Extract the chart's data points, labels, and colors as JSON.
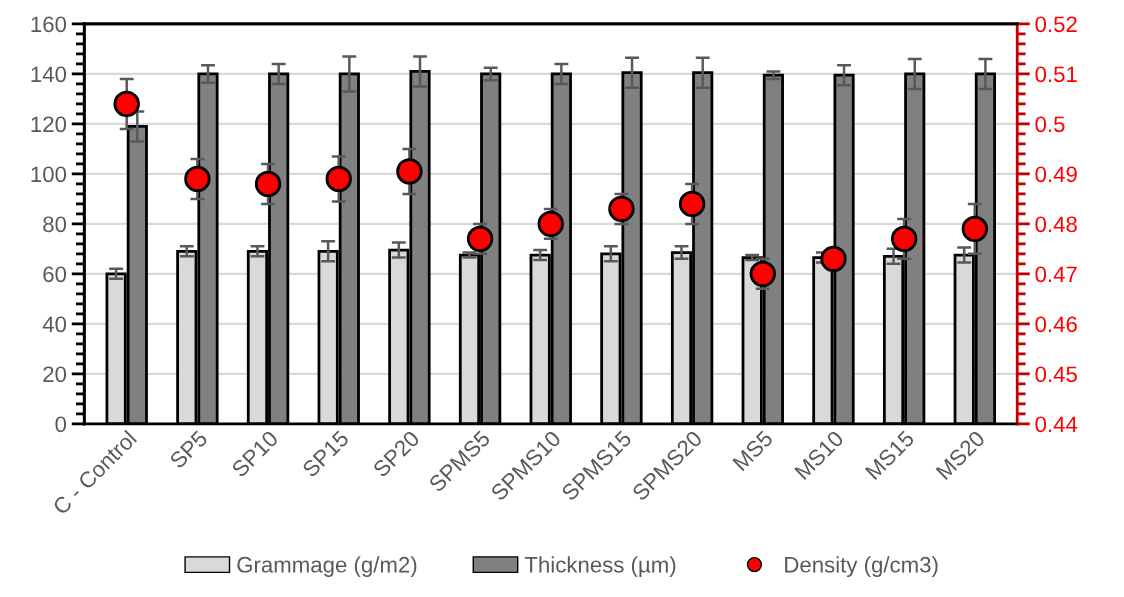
{
  "chart_data": {
    "type": "bar",
    "categories": [
      "C - Control",
      "SP5",
      "SP10",
      "SP15",
      "SP20",
      "SPMS5",
      "SPMS10",
      "SPMS15",
      "SPMS20",
      "MS5",
      "MS10",
      "MS15",
      "MS20"
    ],
    "series": [
      {
        "name": "Grammage (g/m2)",
        "color": "#d9d9d9",
        "values": [
          60,
          69,
          69,
          69,
          69.5,
          67.5,
          67.5,
          68,
          68.5,
          66.5,
          66.5,
          67,
          67.5
        ],
        "errors": [
          2,
          2,
          2,
          4,
          3,
          1,
          2,
          3,
          2.5,
          1,
          2,
          3,
          3
        ]
      },
      {
        "name": "Thickness (µm)",
        "color": "#808080",
        "values": [
          119,
          140,
          140,
          140,
          141,
          140,
          140,
          140.5,
          140.5,
          139.5,
          139.5,
          140,
          140
        ],
        "errors": [
          6,
          3.5,
          4,
          7,
          6,
          2.5,
          4,
          6,
          6,
          1.5,
          4,
          6,
          6
        ]
      },
      {
        "name": "Density (g/cm3)",
        "type": "scatter",
        "axis": "y2",
        "color": "#ff0000",
        "marker": "circle",
        "values": [
          0.504,
          0.489,
          0.488,
          0.489,
          0.4905,
          0.477,
          0.48,
          0.483,
          0.484,
          0.47,
          0.473,
          0.477,
          0.479
        ],
        "errors": [
          0.005,
          0.004,
          0.004,
          0.0045,
          0.0045,
          0.003,
          0.003,
          0.003,
          0.004,
          0.003,
          0.002,
          0.004,
          0.005
        ]
      }
    ],
    "ylim": [
      0,
      160
    ],
    "yticks": [
      0,
      {
        "value": 4,
        "label": null
      },
      {
        "value": 8,
        "label": null
      },
      {
        "value": 12,
        "label": null
      },
      {
        "value": 16,
        "label": null
      },
      20,
      {
        "value": 24,
        "label": null
      },
      {
        "value": 28,
        "label": null
      },
      {
        "value": 32,
        "label": null
      },
      {
        "value": 36,
        "label": null
      },
      40,
      {
        "value": 44,
        "label": null
      },
      {
        "value": 48,
        "label": null
      },
      {
        "value": 52,
        "label": null
      },
      {
        "value": 56,
        "label": null
      },
      60,
      {
        "value": 64,
        "label": null
      },
      {
        "value": 68,
        "label": null
      },
      {
        "value": 72,
        "label": null
      },
      {
        "value": 76,
        "label": null
      },
      80,
      {
        "value": 84,
        "label": null
      },
      {
        "value": 88,
        "label": null
      },
      {
        "value": 92,
        "label": null
      },
      {
        "value": 96,
        "label": null
      },
      100,
      {
        "value": 104,
        "label": null
      },
      {
        "value": 108,
        "label": null
      },
      {
        "value": 112,
        "label": null
      },
      {
        "value": 116,
        "label": null
      },
      120,
      {
        "value": 124,
        "label": null
      },
      {
        "value": 128,
        "label": null
      },
      {
        "value": 132,
        "label": null
      },
      {
        "value": 136,
        "label": null
      },
      140,
      {
        "value": 144,
        "label": null
      },
      {
        "value": 148,
        "label": null
      },
      {
        "value": 152,
        "label": null
      },
      {
        "value": 156,
        "label": null
      },
      160
    ],
    "y2lim": [
      0.44,
      0.52
    ],
    "y2ticks": [
      0.44,
      {
        "value": 0.442,
        "label": null
      },
      {
        "value": 0.444,
        "label": null
      },
      {
        "value": 0.446,
        "label": null
      },
      {
        "value": 0.448,
        "label": null
      },
      0.45,
      {
        "value": 0.452,
        "label": null
      },
      {
        "value": 0.454,
        "label": null
      },
      {
        "value": 0.456,
        "label": null
      },
      {
        "value": 0.458,
        "label": null
      },
      0.46,
      {
        "value": 0.462,
        "label": null
      },
      {
        "value": 0.464,
        "label": null
      },
      {
        "value": 0.466,
        "label": null
      },
      {
        "value": 0.468,
        "label": null
      },
      0.47,
      {
        "value": 0.472,
        "label": null
      },
      {
        "value": 0.474,
        "label": null
      },
      {
        "value": 0.476,
        "label": null
      },
      {
        "value": 0.478,
        "label": null
      },
      0.48,
      {
        "value": 0.482,
        "label": null
      },
      {
        "value": 0.484,
        "label": null
      },
      {
        "value": 0.486,
        "label": null
      },
      {
        "value": 0.488,
        "label": null
      },
      0.49,
      {
        "value": 0.492,
        "label": null
      },
      {
        "value": 0.494,
        "label": null
      },
      {
        "value": 0.496,
        "label": null
      },
      {
        "value": 0.498,
        "label": null
      },
      0.5,
      {
        "value": 0.502,
        "label": null
      },
      {
        "value": 0.504,
        "label": null
      },
      {
        "value": 0.506,
        "label": null
      },
      {
        "value": 0.508,
        "label": null
      },
      0.51,
      {
        "value": 0.512,
        "label": null
      },
      {
        "value": 0.514,
        "label": null
      },
      {
        "value": 0.516,
        "label": null
      },
      {
        "value": 0.518,
        "label": null
      },
      0.52
    ],
    "grid": "y",
    "legend": "bottom"
  }
}
